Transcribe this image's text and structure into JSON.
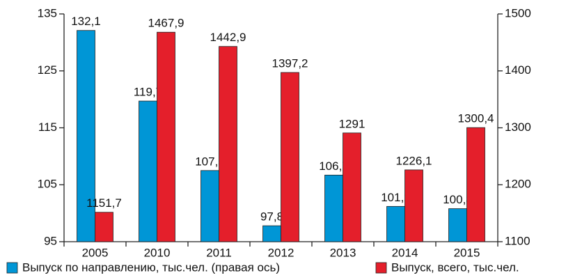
{
  "chart_data": {
    "type": "bar",
    "categories": [
      "2005",
      "2010",
      "2011",
      "2012",
      "2013",
      "2014",
      "2015"
    ],
    "series": [
      {
        "name": "Выпуск по направлению, тыс.чел. (правая ось)",
        "color": "#0096d6",
        "values": [
          132.1,
          119.7,
          107.5,
          97.8,
          106.7,
          101.2,
          100.8
        ],
        "value_labels": [
          "132,1",
          "119,7",
          "107,5",
          "97,8",
          "106,7",
          "101,2",
          "100,8"
        ]
      },
      {
        "name": "Выпуск, всего, тыс.чел.",
        "color": "#e41f2b",
        "axis": "y2",
        "values": [
          1151.7,
          1467.9,
          1442.9,
          1397.2,
          1291,
          1226.1,
          1300.4
        ],
        "value_labels": [
          "1151,7",
          "1467,9",
          "1442,9",
          "1397,2",
          "1291",
          "1226,1",
          "1300,4"
        ]
      }
    ],
    "ylim": [
      95,
      135
    ],
    "yticks": [
      95,
      105,
      115,
      125,
      135
    ],
    "y2lim": [
      1100,
      1500
    ],
    "y2ticks": [
      1100,
      1200,
      1300,
      1400,
      1500
    ],
    "grid": false
  }
}
